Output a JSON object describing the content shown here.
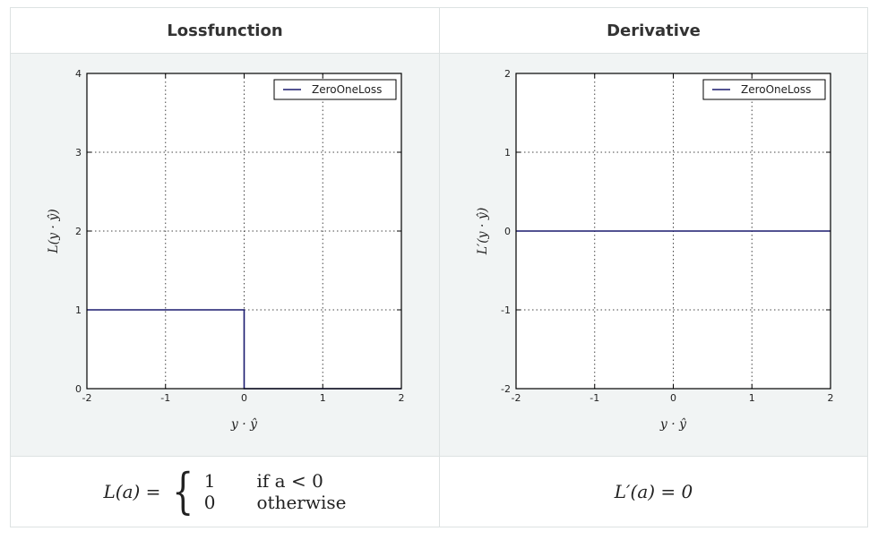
{
  "headers": {
    "left": "Lossfunction",
    "right": "Derivative"
  },
  "formulas": {
    "left": {
      "lhs": "L(a) =",
      "case1_value": "1",
      "case1_cond": "if a < 0",
      "case2_value": "0",
      "case2_cond": "otherwise"
    },
    "right": {
      "text": "L′(a) = 0"
    }
  },
  "chart_data": [
    {
      "type": "line",
      "xlabel": "y · ŷ",
      "ylabel": "L(y · ŷ)",
      "xlim": [
        -2,
        2
      ],
      "ylim": [
        0,
        4
      ],
      "xticks": [
        -2,
        -1,
        0,
        1,
        2
      ],
      "yticks": [
        0,
        1,
        2,
        3,
        4
      ],
      "xtick_labels": [
        "-2",
        "-1",
        "0",
        "1",
        "2"
      ],
      "ytick_labels": [
        "0",
        "1",
        "2",
        "3",
        "4"
      ],
      "grid": true,
      "legend": "top-right",
      "series": [
        {
          "name": "ZeroOneLoss",
          "color": "#1a1a6e",
          "x": [
            -2,
            0,
            0,
            2
          ],
          "y": [
            1,
            1,
            0,
            0
          ]
        }
      ]
    },
    {
      "type": "line",
      "xlabel": "y · ŷ",
      "ylabel": "L′(y · ŷ)",
      "xlim": [
        -2,
        2
      ],
      "ylim": [
        -2,
        2
      ],
      "xticks": [
        -2,
        -1,
        0,
        1,
        2
      ],
      "yticks": [
        -2,
        -1,
        0,
        1,
        2
      ],
      "xtick_labels": [
        "-2",
        "-1",
        "0",
        "1",
        "2"
      ],
      "ytick_labels": [
        "-2",
        "-1",
        "0",
        "1",
        "2"
      ],
      "grid": true,
      "legend": "top-right",
      "series": [
        {
          "name": "ZeroOneLoss",
          "color": "#1a1a6e",
          "x": [
            -2,
            2
          ],
          "y": [
            0,
            0
          ]
        }
      ]
    }
  ]
}
